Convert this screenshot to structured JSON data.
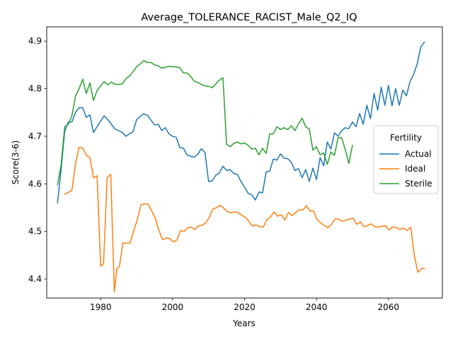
{
  "chart_data": {
    "type": "line",
    "title": "Average_TOLERANCE_RACIST_Male_Q2_IQ",
    "xlabel": "Years",
    "ylabel": "Score(3-6)",
    "xlim": [
      1965,
      2075
    ],
    "ylim": [
      4.36,
      4.93
    ],
    "x_ticks": [
      1980,
      2000,
      2020,
      2040,
      2060
    ],
    "y_ticks": [
      4.4,
      4.5,
      4.6,
      4.7,
      4.8,
      4.9
    ],
    "grid": false,
    "legend": {
      "title": "Fertility",
      "placement": "center-right"
    },
    "series": [
      {
        "name": "Actual",
        "color": "#1f77b4",
        "x": [
          1968,
          1969,
          1970,
          1971,
          1972,
          1973,
          1974,
          1975,
          1976,
          1977,
          1978,
          1979,
          1980,
          1981,
          1982,
          1983,
          1984,
          1985,
          1986,
          1987,
          1988,
          1989,
          1990,
          1991,
          1992,
          1993,
          1994,
          1995,
          1996,
          1997,
          1998,
          1999,
          2000,
          2001,
          2002,
          2003,
          2004,
          2005,
          2006,
          2007,
          2008,
          2009,
          2010,
          2011,
          2012,
          2013,
          2014,
          2015,
          2016,
          2017,
          2018,
          2019,
          2020,
          2021,
          2022,
          2023,
          2024,
          2025,
          2026,
          2027,
          2028,
          2029,
          2030,
          2031,
          2032,
          2033,
          2034,
          2035,
          2036,
          2037,
          2038,
          2039,
          2040,
          2041,
          2042,
          2043,
          2044,
          2045,
          2046,
          2047,
          2048,
          2049,
          2050,
          2051,
          2052,
          2053,
          2054,
          2055,
          2056,
          2057,
          2058,
          2059,
          2060,
          2061,
          2062,
          2063,
          2064,
          2065,
          2066,
          2067,
          2068,
          2069,
          2070
        ],
        "values": [
          4.56,
          4.63,
          4.71,
          4.73,
          4.73,
          4.75,
          4.76,
          4.76,
          4.74,
          4.745,
          4.708,
          4.72,
          4.732,
          4.743,
          4.735,
          4.725,
          4.715,
          4.712,
          4.708,
          4.7,
          4.705,
          4.71,
          4.735,
          4.742,
          4.747,
          4.744,
          4.734,
          4.724,
          4.725,
          4.712,
          4.718,
          4.705,
          4.7,
          4.698,
          4.676,
          4.675,
          4.661,
          4.658,
          4.656,
          4.662,
          4.674,
          4.666,
          4.605,
          4.606,
          4.618,
          4.623,
          4.637,
          4.628,
          4.63,
          4.622,
          4.62,
          4.605,
          4.593,
          4.58,
          4.577,
          4.566,
          4.583,
          4.581,
          4.625,
          4.627,
          4.652,
          4.65,
          4.663,
          4.654,
          4.653,
          4.645,
          4.628,
          4.632,
          4.613,
          4.63,
          4.605,
          4.633,
          4.609,
          4.655,
          4.638,
          4.688,
          4.673,
          4.707,
          4.7,
          4.712,
          4.718,
          4.716,
          4.73,
          4.72,
          4.748,
          4.725,
          4.765,
          4.737,
          4.79,
          4.755,
          4.803,
          4.765,
          4.807,
          4.764,
          4.8,
          4.765,
          4.797,
          4.785,
          4.815,
          4.83,
          4.852,
          4.888,
          4.898
        ]
      },
      {
        "name": "Ideal",
        "color": "#ff7f0e",
        "x": [
          1970,
          1971,
          1972,
          1973,
          1974,
          1975,
          1976,
          1977,
          1978,
          1979,
          1980,
          1980.8,
          1981.8,
          1982.8,
          1983.8,
          1984.5,
          1985.2,
          1986.2,
          1987.2,
          1988.2,
          1989.2,
          1990.2,
          1991.2,
          1992.2,
          1993.2,
          1994.2,
          1995.2,
          1996.2,
          1997.2,
          1998.2,
          1999.2,
          2000.2,
          2001.2,
          2002.2,
          2003.2,
          2004.2,
          2005.2,
          2006.2,
          2007.2,
          2008.2,
          2009.2,
          2010.2,
          2011.2,
          2012.2,
          2013.2,
          2014.2,
          2015.2,
          2016.2,
          2017.2,
          2018.2,
          2019.2,
          2020.2,
          2021.2,
          2022.2,
          2023.2,
          2024.2,
          2025.2,
          2026.2,
          2027.2,
          2028.2,
          2029.2,
          2030.2,
          2031.2,
          2032.2,
          2033.2,
          2034.2,
          2035.2,
          2036.2,
          2037.2,
          2038.2,
          2039.2,
          2040.2,
          2041.2,
          2042.2,
          2043.2,
          2044.2,
          2045.2,
          2046.2,
          2047.2,
          2048.2,
          2049.2,
          2050.2,
          2051.2,
          2052.2,
          2053.2,
          2054.2,
          2055.2,
          2056.2,
          2057.2,
          2058.2,
          2059.2,
          2060.2,
          2061.2,
          2062.2,
          2063.2,
          2064.2,
          2065.2,
          2066.2,
          2067.2,
          2068.2,
          2069.2,
          2070
        ],
        "values": [
          4.578,
          4.582,
          4.586,
          4.642,
          4.677,
          4.675,
          4.66,
          4.655,
          4.613,
          4.617,
          4.427,
          4.432,
          4.613,
          4.62,
          4.373,
          4.422,
          4.426,
          4.476,
          4.475,
          4.476,
          4.502,
          4.525,
          4.556,
          4.558,
          4.557,
          4.543,
          4.527,
          4.502,
          4.483,
          4.486,
          4.485,
          4.478,
          4.482,
          4.502,
          4.5,
          4.508,
          4.509,
          4.504,
          4.512,
          4.513,
          4.518,
          4.53,
          4.547,
          4.55,
          4.555,
          4.549,
          4.542,
          4.539,
          4.541,
          4.54,
          4.534,
          4.53,
          4.521,
          4.511,
          4.514,
          4.51,
          4.509,
          4.525,
          4.53,
          4.541,
          4.532,
          4.535,
          4.524,
          4.54,
          4.533,
          4.54,
          4.546,
          4.545,
          4.554,
          4.543,
          4.543,
          4.524,
          4.518,
          4.512,
          4.508,
          4.516,
          4.526,
          4.526,
          4.521,
          4.524,
          4.526,
          4.528,
          4.515,
          4.52,
          4.51,
          4.512,
          4.516,
          4.51,
          4.509,
          4.511,
          4.512,
          4.503,
          4.51,
          4.508,
          4.504,
          4.507,
          4.502,
          4.509,
          4.449,
          4.414,
          4.422,
          4.422
        ]
      },
      {
        "name": "Sterile",
        "color": "#2ca02c",
        "x": [
          1968,
          1969,
          1970,
          1971,
          1972,
          1973,
          1974,
          1975,
          1976,
          1977,
          1978,
          1979,
          1980,
          1981,
          1982,
          1983,
          1984,
          1985,
          1986,
          1987,
          1988,
          1989,
          1990,
          1991,
          1992,
          1993,
          1994,
          1995,
          1996,
          1997,
          1998,
          1999,
          2000,
          2001,
          2002,
          2003,
          2004,
          2005,
          2006,
          2007,
          2008,
          2009,
          2010,
          2011,
          2012,
          2013,
          2014,
          2015,
          2016,
          2017,
          2018,
          2019,
          2020,
          2021,
          2022,
          2023,
          2024,
          2025,
          2026,
          2027,
          2028,
          2029,
          2030,
          2031,
          2032,
          2033,
          2034,
          2035,
          2036,
          2037,
          2038,
          2039,
          2040,
          2041,
          2042,
          2043,
          2044,
          2045,
          2046,
          2047,
          2048,
          2049,
          2050
        ],
        "values": [
          4.598,
          4.64,
          4.72,
          4.725,
          4.743,
          4.784,
          4.8,
          4.82,
          4.79,
          4.812,
          4.775,
          4.796,
          4.806,
          4.815,
          4.808,
          4.814,
          4.809,
          4.809,
          4.81,
          4.821,
          4.826,
          4.836,
          4.846,
          4.852,
          4.859,
          4.855,
          4.855,
          4.85,
          4.848,
          4.843,
          4.845,
          4.847,
          4.846,
          4.846,
          4.844,
          4.833,
          4.833,
          4.826,
          4.816,
          4.813,
          4.809,
          4.806,
          4.805,
          4.802,
          4.81,
          4.818,
          4.823,
          4.683,
          4.678,
          4.685,
          4.688,
          4.684,
          4.686,
          4.681,
          4.673,
          4.675,
          4.661,
          4.675,
          4.664,
          4.705,
          4.705,
          4.72,
          4.714,
          4.718,
          4.714,
          4.722,
          4.712,
          4.726,
          4.738,
          4.72,
          4.715,
          4.671,
          4.678,
          4.661,
          4.665,
          4.641,
          4.667,
          4.66,
          4.697,
          4.697,
          4.672,
          4.643,
          4.681
        ]
      }
    ]
  }
}
